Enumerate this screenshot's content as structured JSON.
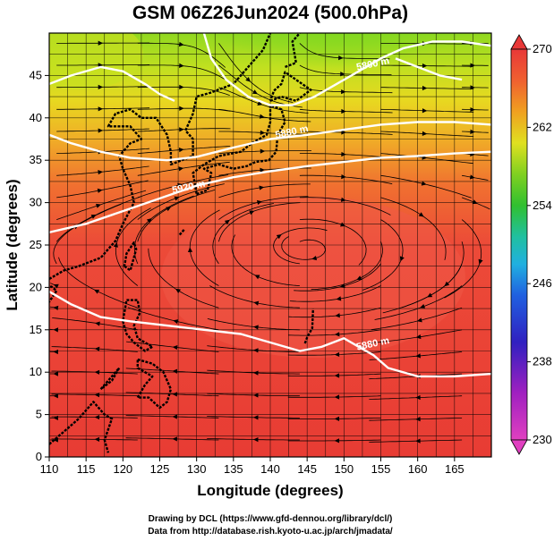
{
  "title": "GSM 06Z26Jun2024 (500.0hPa)",
  "x_axis": {
    "label": "Longitude (degrees)",
    "ticks": [
      "110",
      "115",
      "120",
      "125",
      "130",
      "135",
      "140",
      "145",
      "150",
      "155",
      "160",
      "165"
    ],
    "range": [
      110,
      170
    ]
  },
  "y_axis": {
    "label": "Latitude  (degrees)",
    "ticks": [
      "0",
      "5",
      "10",
      "15",
      "20",
      "25",
      "30",
      "35",
      "40",
      "45"
    ],
    "range": [
      0,
      50
    ]
  },
  "colorbar": {
    "ticks": [
      "230",
      "238",
      "246",
      "254",
      "262",
      "270"
    ],
    "range": [
      230,
      270
    ],
    "colors": [
      "#e040c0",
      "#a020c0",
      "#3020c0",
      "#2080e0",
      "#20c0c0",
      "#20c060",
      "#40c020",
      "#a0d820",
      "#f0e020",
      "#f0a020",
      "#f06030",
      "#e83838"
    ]
  },
  "contours": [
    {
      "label": "5880 m",
      "lon": 143,
      "lat": 38
    },
    {
      "label": "5920 m",
      "lon": 129,
      "lat": 31.5
    },
    {
      "label": "5880 m",
      "lon": 154,
      "lat": 13
    },
    {
      "label": "5800 m",
      "lon": 154,
      "lat": 46
    }
  ],
  "credits": {
    "line1": "Drawing by DCL (https://www.gfd-dennou.org/library/dcl/)",
    "line2": "Data from http://database.rish.kyoto-u.ac.jp/arch/jmadata/"
  }
}
